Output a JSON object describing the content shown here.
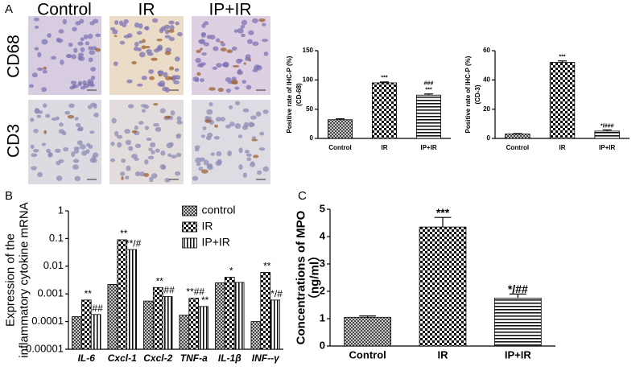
{
  "figure": {
    "panel_labels": [
      "A",
      "B",
      "C"
    ],
    "image_columns": [
      "Control",
      "IR",
      "IP+IR"
    ],
    "image_rows": [
      "CD68",
      "CD3"
    ]
  },
  "chart_data": [
    {
      "type": "bar",
      "ylabel": [
        "Positive rate of IHC-P (%)",
        "(CD-68)"
      ],
      "categories": [
        "Control",
        "IR",
        "IP+IR"
      ],
      "values": [
        32,
        95,
        74
      ],
      "errors": [
        1.5,
        1.5,
        2
      ],
      "patterns": [
        "dense",
        "checker",
        "hlines"
      ],
      "annotations": [
        [],
        [
          "***"
        ],
        [
          "###",
          "***"
        ]
      ],
      "ylim": [
        0,
        150
      ],
      "yticks": [
        0,
        50,
        100,
        150
      ]
    },
    {
      "type": "bar",
      "ylabel": [
        "Positive rate of IHC-P (%)",
        "(CD-3)"
      ],
      "categories": [
        "Control",
        "IR",
        "IP+IR"
      ],
      "values": [
        3,
        52,
        5
      ],
      "errors": [
        0.3,
        1,
        0.8
      ],
      "patterns": [
        "dense",
        "checker",
        "hlines"
      ],
      "annotations": [
        [],
        [
          "***"
        ],
        [
          "*/###"
        ]
      ],
      "ylim": [
        0,
        60
      ],
      "yticks": [
        0,
        20,
        40,
        60
      ]
    },
    {
      "type": "bar",
      "ylabel": [
        "Expression of  the",
        "inflammatory cytokine mRNA"
      ],
      "log": true,
      "categories": [
        "IL-6",
        "Cxcl-1",
        "Cxcl-2",
        "TNF-a",
        "IL-1β",
        "INF--γ"
      ],
      "series": [
        {
          "name": "control",
          "pattern": "dense",
          "values": [
            0.00015,
            0.0022,
            0.00055,
            0.00017,
            0.0025,
            0.0001
          ]
        },
        {
          "name": "IR",
          "pattern": "checker",
          "values": [
            0.0006,
            0.09,
            0.0017,
            0.0007,
            0.004,
            0.006
          ],
          "annotations": [
            "**",
            "**",
            "**",
            "**##",
            "*",
            "**"
          ]
        },
        {
          "name": "IP+IR",
          "pattern": "vlines",
          "values": [
            0.00018,
            0.04,
            0.0008,
            0.00035,
            0.0026,
            0.0006
          ],
          "annotations": [
            "##",
            "**/#",
            "##",
            "**",
            null,
            "*/#"
          ]
        }
      ],
      "legend": "top-center",
      "ylim": [
        1e-05,
        1
      ],
      "yticks": [
        1,
        0.1,
        0.01,
        0.001,
        0.0001,
        1e-05
      ]
    },
    {
      "type": "bar",
      "ylabel": [
        "Concentrations of MPO",
        "（ng/ml）"
      ],
      "categories": [
        "Control",
        "IR",
        "IP+IR"
      ],
      "values": [
        1.05,
        4.35,
        1.75
      ],
      "errors": [
        0.05,
        0.35,
        0.15
      ],
      "patterns": [
        "dense",
        "checker",
        "hlines"
      ],
      "annotations": [
        [],
        [
          "***"
        ],
        [
          "*/##"
        ]
      ],
      "ylim": [
        0,
        5
      ],
      "yticks": [
        0,
        1,
        2,
        3,
        4,
        5
      ]
    }
  ]
}
